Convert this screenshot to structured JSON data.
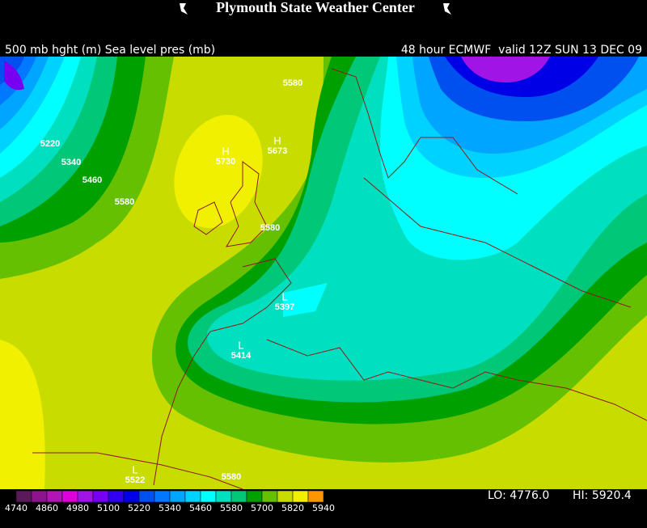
{
  "header": {
    "title": "Plymouth State Weather Center",
    "left": "500 mb hght (m) Sea level pres (mb)",
    "right": "48 hour ECMWF  valid 12Z SUN 13 DEC 09"
  },
  "contour_labels": [
    5220,
    5340,
    5460,
    5580,
    5580,
    5580,
    5580
  ],
  "centers": [
    {
      "type": "H",
      "value": 5730
    },
    {
      "type": "H",
      "value": 5673
    },
    {
      "type": "L",
      "value": 5397
    },
    {
      "type": "L",
      "value": 5414
    },
    {
      "type": "L",
      "value": 5522
    }
  ],
  "legend": {
    "labels": [
      4740,
      4860,
      4980,
      5100,
      5220,
      5340,
      5460,
      5580,
      5700,
      5820,
      5940
    ],
    "colors": [
      "#5a1a5a",
      "#8c148c",
      "#b414b4",
      "#dc00dc",
      "#a014e6",
      "#7800f0",
      "#3200f0",
      "#0000e6",
      "#0050f0",
      "#0078ff",
      "#00a5ff",
      "#00d2ff",
      "#00ffff",
      "#00e0c0",
      "#00c878",
      "#00a000",
      "#64c000",
      "#c8dc00",
      "#f0f000",
      "#ff9600"
    ]
  },
  "extremes": [
    "LO: 4776.0",
    "HI: 5920.4"
  ]
}
